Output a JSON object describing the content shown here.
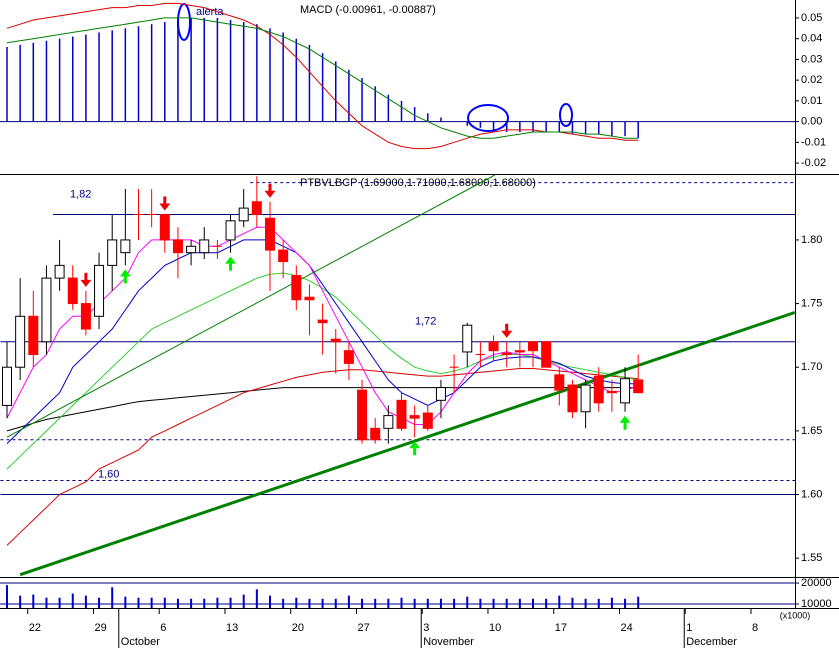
{
  "chart_data": [
    {
      "type": "macd",
      "title": "MACD (-0.00961, -0.00887)",
      "annotation": "alerta",
      "ylim": [
        -0.0243,
        0.0572
      ],
      "yticks": [
        0.05,
        0.04,
        0.03,
        0.02,
        0.01,
        {
          "value": 0,
          "label": "0.00"
        },
        -0.01,
        -0.02
      ],
      "histogram_color": "#0000cc",
      "histogram": [
        0.036,
        0.037,
        0.038,
        0.039,
        0.04,
        0.041,
        0.042,
        0.043,
        0.044,
        0.045,
        0.046,
        0.047,
        0.048,
        0.049,
        0.05,
        0.05,
        0.05,
        0.049,
        0.048,
        0.047,
        0.045,
        0.043,
        0.04,
        0.037,
        0.033,
        0.029,
        0.025,
        0.021,
        0.017,
        0.013,
        0.01,
        0.007,
        0.004,
        0.002,
        0.0,
        -0.002,
        -0.003,
        -0.004,
        -0.005,
        -0.005,
        -0.005,
        -0.005,
        -0.005,
        -0.006,
        -0.006,
        -0.006,
        -0.007,
        -0.007,
        -0.008
      ],
      "series": [
        {
          "color": "#dd0000",
          "values": [
            0.045,
            0.047,
            0.049,
            0.05,
            0.051,
            0.052,
            0.053,
            0.054,
            0.055,
            0.055,
            0.056,
            0.056,
            0.057,
            0.057,
            0.056,
            0.055,
            0.053,
            0.051,
            0.049,
            0.046,
            0.042,
            0.037,
            0.031,
            0.024,
            0.017,
            0.01,
            0.004,
            -0.002,
            -0.006,
            -0.01,
            -0.012,
            -0.013,
            -0.013,
            -0.012,
            -0.01,
            -0.008,
            -0.006,
            -0.005,
            -0.004,
            -0.004,
            -0.004,
            -0.005,
            -0.005,
            -0.006,
            -0.007,
            -0.008,
            -0.008,
            -0.009,
            -0.009
          ]
        },
        {
          "color": "#008000",
          "values": [
            0.038,
            0.039,
            0.04,
            0.041,
            0.042,
            0.043,
            0.044,
            0.045,
            0.046,
            0.047,
            0.048,
            0.049,
            0.05,
            0.05,
            0.05,
            0.049,
            0.048,
            0.047,
            0.046,
            0.045,
            0.043,
            0.041,
            0.038,
            0.035,
            0.031,
            0.027,
            0.023,
            0.019,
            0.015,
            0.011,
            0.007,
            0.003,
            0.0,
            -0.003,
            -0.005,
            -0.007,
            -0.008,
            -0.008,
            -0.007,
            -0.006,
            -0.005,
            -0.005,
            -0.005,
            -0.005,
            -0.006,
            -0.006,
            -0.007,
            -0.008,
            -0.008
          ]
        }
      ]
    },
    {
      "type": "candlestick",
      "title": "PTBVLBCP (1.69000,1.71000,1.68000,1.68000)",
      "ylim": [
        1.536,
        1.851
      ],
      "yticks": [
        {
          "value": 1.8,
          "label": "1.80"
        },
        1.75,
        {
          "value": 1.7,
          "label": "1.70"
        },
        1.65,
        {
          "value": 1.6,
          "label": "1.60"
        },
        1.55
      ],
      "categories": [
        null,
        null,
        "22",
        null,
        null,
        null,
        null,
        "29",
        null,
        null,
        null,
        null,
        "6",
        null,
        null,
        null,
        null,
        "13",
        null,
        null,
        null,
        null,
        "20",
        null,
        null,
        null,
        null,
        "27",
        null,
        null,
        null,
        null,
        "3",
        null,
        null,
        null,
        null,
        "10",
        null,
        null,
        null,
        null,
        "17",
        null,
        null,
        null,
        null,
        "24",
        null,
        null,
        null,
        null,
        "1",
        null,
        null,
        null,
        null,
        "8",
        null,
        null,
        null
      ],
      "months": [
        {
          "index": 9,
          "label": "October"
        },
        {
          "index": 32,
          "label": "November"
        },
        {
          "index": 52,
          "label": "December"
        }
      ],
      "up_color": "#ffffff",
      "down_color": "#ff0000",
      "open": [
        1.67,
        1.7,
        1.74,
        1.72,
        1.77,
        1.77,
        1.75,
        1.74,
        1.78,
        1.79,
        1.82,
        1.82,
        1.82,
        1.8,
        1.79,
        1.79,
        1.795,
        1.8,
        1.815,
        1.83,
        1.817,
        1.792,
        1.772,
        1.755,
        1.737,
        1.722,
        1.713,
        1.682,
        1.652,
        1.652,
        1.674,
        1.662,
        1.664,
        1.674,
        1.7,
        1.712,
        1.71,
        1.72,
        1.711,
        1.713,
        1.72,
        1.72,
        1.694,
        1.686,
        1.665,
        1.693,
        1.681,
        1.672,
        1.69,
        null,
        null,
        null,
        null,
        null,
        null,
        null,
        null,
        null,
        null,
        null,
        null
      ],
      "high": [
        1.72,
        1.77,
        1.76,
        1.78,
        1.8,
        1.78,
        1.76,
        1.79,
        1.82,
        1.84,
        1.84,
        1.84,
        1.82,
        1.81,
        1.8,
        1.81,
        1.8,
        1.82,
        1.84,
        1.85,
        1.83,
        1.8,
        1.78,
        1.765,
        1.75,
        1.73,
        1.72,
        1.69,
        1.66,
        1.67,
        1.68,
        1.67,
        1.67,
        1.69,
        1.71,
        1.735,
        1.72,
        1.725,
        1.72,
        1.72,
        1.72,
        1.72,
        1.7,
        1.69,
        1.69,
        1.7,
        1.69,
        1.7,
        1.71,
        null,
        null,
        null,
        null,
        null,
        null,
        null,
        null,
        null,
        null,
        null,
        null
      ],
      "low": [
        1.66,
        1.69,
        1.7,
        1.71,
        1.76,
        1.745,
        1.725,
        1.73,
        1.76,
        1.78,
        1.8,
        1.81,
        1.79,
        1.77,
        1.78,
        1.785,
        1.785,
        1.79,
        1.81,
        1.81,
        1.76,
        1.77,
        1.745,
        1.725,
        1.71,
        1.695,
        1.69,
        1.64,
        1.64,
        1.64,
        1.65,
        1.645,
        1.65,
        1.66,
        1.68,
        1.7,
        1.7,
        1.705,
        1.7,
        1.7,
        1.7,
        1.7,
        1.67,
        1.66,
        1.652,
        1.665,
        1.665,
        1.665,
        1.68,
        null,
        null,
        null,
        null,
        null,
        null,
        null,
        null,
        null,
        null,
        null,
        null
      ],
      "close": [
        1.7,
        1.74,
        1.71,
        1.77,
        1.78,
        1.75,
        1.73,
        1.78,
        1.8,
        1.8,
        1.82,
        1.82,
        1.8,
        1.79,
        1.795,
        1.8,
        1.795,
        1.815,
        1.825,
        1.82,
        1.792,
        1.783,
        1.753,
        1.753,
        1.735,
        1.72,
        1.703,
        1.643,
        1.643,
        1.662,
        1.652,
        1.66,
        1.652,
        1.684,
        1.7,
        1.733,
        1.71,
        1.713,
        1.71,
        1.712,
        1.713,
        1.7,
        1.682,
        1.665,
        1.686,
        1.672,
        1.68,
        1.691,
        1.68,
        null,
        null,
        null,
        null,
        null,
        null,
        null,
        null,
        null,
        null,
        null,
        null
      ],
      "series": [
        {
          "color": "#000000",
          "values": [
            1.65,
            1.653,
            1.656,
            1.659,
            1.661,
            1.663,
            1.665,
            1.667,
            1.669,
            1.671,
            1.673,
            1.674,
            1.675,
            1.676,
            1.677,
            1.678,
            1.679,
            1.68,
            1.681,
            1.682,
            1.683,
            1.684,
            1.684,
            1.684,
            1.684,
            1.684,
            1.684,
            1.684,
            1.684,
            1.684,
            1.684,
            1.684,
            1.684,
            1.684,
            1.684,
            1.684,
            1.684,
            1.684,
            1.684,
            1.684,
            1.684,
            1.684,
            1.684,
            1.684,
            1.684,
            1.684,
            1.684,
            1.684,
            1.684,
            null,
            null,
            null,
            null,
            null,
            null,
            null,
            null,
            null,
            null,
            null,
            null
          ]
        },
        {
          "color": "#dd0000",
          "values": [
            1.56,
            1.57,
            1.58,
            1.59,
            1.6,
            1.605,
            1.61,
            1.62,
            1.625,
            1.63,
            1.635,
            1.645,
            1.65,
            1.655,
            1.66,
            1.665,
            1.67,
            1.675,
            1.68,
            1.683,
            1.686,
            1.689,
            1.692,
            1.694,
            1.696,
            1.697,
            1.698,
            1.698,
            1.697,
            1.696,
            1.695,
            1.694,
            1.693,
            1.693,
            1.694,
            1.695,
            1.696,
            1.697,
            1.698,
            1.699,
            1.699,
            1.698,
            1.697,
            1.696,
            1.695,
            1.694,
            1.693,
            1.692,
            1.691,
            null,
            null,
            null,
            null,
            null,
            null,
            null,
            null,
            null,
            null,
            null,
            null
          ]
        },
        {
          "color": "#33cc33",
          "values": [
            1.62,
            1.63,
            1.64,
            1.65,
            1.66,
            1.67,
            1.68,
            1.69,
            1.7,
            1.71,
            1.72,
            1.73,
            1.735,
            1.74,
            1.745,
            1.75,
            1.755,
            1.76,
            1.765,
            1.77,
            1.773,
            1.774,
            1.772,
            1.768,
            1.762,
            1.755,
            1.745,
            1.735,
            1.725,
            1.715,
            1.707,
            1.7,
            1.697,
            1.695,
            1.697,
            1.7,
            1.705,
            1.708,
            1.71,
            1.71,
            1.708,
            1.705,
            1.702,
            1.7,
            1.698,
            1.696,
            1.694,
            1.692,
            1.69,
            null,
            null,
            null,
            null,
            null,
            null,
            null,
            null,
            null,
            null,
            null,
            null
          ]
        },
        {
          "color": "#0000cc",
          "values": [
            1.64,
            1.65,
            1.66,
            1.67,
            1.68,
            1.7,
            1.71,
            1.72,
            1.73,
            1.745,
            1.76,
            1.77,
            1.78,
            1.785,
            1.79,
            1.79,
            1.79,
            1.795,
            1.8,
            1.8,
            1.8,
            1.795,
            1.79,
            1.78,
            1.765,
            1.75,
            1.735,
            1.72,
            1.705,
            1.69,
            1.68,
            1.675,
            1.67,
            1.675,
            1.68,
            1.69,
            1.7,
            1.705,
            1.707,
            1.708,
            1.708,
            1.706,
            1.703,
            1.698,
            1.693,
            1.69,
            1.688,
            1.687,
            1.687,
            null,
            null,
            null,
            null,
            null,
            null,
            null,
            null,
            null,
            null,
            null,
            null
          ]
        },
        {
          "color": "#ff00ff",
          "values": [
            1.66,
            1.68,
            1.7,
            1.71,
            1.73,
            1.74,
            1.74,
            1.75,
            1.76,
            1.77,
            1.79,
            1.8,
            1.8,
            1.8,
            1.8,
            1.795,
            1.795,
            1.8,
            1.805,
            1.81,
            1.81,
            1.8,
            1.79,
            1.78,
            1.76,
            1.74,
            1.72,
            1.7,
            1.68,
            1.665,
            1.66,
            1.655,
            1.655,
            1.665,
            1.68,
            1.695,
            1.705,
            1.71,
            1.712,
            1.71,
            1.71,
            1.705,
            1.7,
            1.695,
            1.69,
            1.685,
            1.68,
            1.682,
            1.685,
            null,
            null,
            null,
            null,
            null,
            null,
            null,
            null,
            null,
            null,
            null,
            null
          ]
        }
      ],
      "levels": [
        {
          "value": 1.845,
          "from": 19,
          "dashed": true
        },
        {
          "value": 1.82,
          "from": 4,
          "label": "1,82"
        },
        {
          "value": 1.72,
          "from": 0,
          "label": "1,72"
        },
        {
          "value": 1.643,
          "from": 0,
          "dashed": true
        },
        {
          "value": 1.611,
          "from": 0,
          "dashed": true
        },
        {
          "value": 1.6,
          "from": 0,
          "label": "1,60"
        }
      ],
      "trendlines": [
        {
          "points": [
            [
              1,
              1.537
            ],
            [
              59.9,
              1.743
            ]
          ],
          "color": "#008000",
          "width": 3
        },
        {
          "points": [
            [
              0,
              1.645
            ],
            [
              37.1,
              1.851
            ]
          ],
          "color": "#008000",
          "width": 1
        }
      ],
      "sell_signals": [
        6,
        12,
        20,
        38
      ],
      "buy_signals": [
        9,
        17,
        31,
        47
      ]
    },
    {
      "type": "volume",
      "unit_label": "(x1000)",
      "color": "#0000cc",
      "ylim": [
        8100,
        22400
      ],
      "yticks": [
        20000,
        10000
      ],
      "values": [
        19000,
        14000,
        14500,
        13000,
        13000,
        15000,
        14000,
        13000,
        18000,
        13500,
        13000,
        13000,
        13000,
        12500,
        12500,
        12500,
        13000,
        13000,
        14500,
        17000,
        14000,
        12500,
        13000,
        12500,
        12500,
        12500,
        14000,
        12500,
        12500,
        12500,
        13000,
        12500,
        12500,
        12500,
        12500,
        13500,
        12500,
        12500,
        12500,
        12500,
        12500,
        12500,
        14000,
        13000,
        12500,
        12500,
        13000,
        12500,
        13500
      ]
    }
  ]
}
